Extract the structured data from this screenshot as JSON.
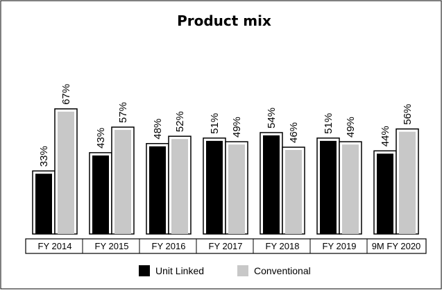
{
  "chart_data": {
    "type": "bar",
    "title": "Product mix",
    "categories": [
      "FY 2014",
      "FY 2015",
      "FY 2016",
      "FY 2017",
      "FY 2018",
      "FY 2019",
      "9M FY 2020"
    ],
    "series": [
      {
        "name": "Unit Linked",
        "color": "#000000",
        "values": [
          33,
          43,
          48,
          51,
          54,
          51,
          44
        ],
        "labels": [
          "33%",
          "43%",
          "48%",
          "51%",
          "54%",
          "51%",
          "44%"
        ]
      },
      {
        "name": "Conventional",
        "color": "#c8c8c8",
        "values": [
          67,
          57,
          52,
          49,
          46,
          49,
          56
        ],
        "labels": [
          "67%",
          "57%",
          "52%",
          "49%",
          "46%",
          "49%",
          "56%"
        ]
      }
    ],
    "ylim": [
      0,
      100
    ],
    "grid": false,
    "legend_position": "bottom"
  }
}
